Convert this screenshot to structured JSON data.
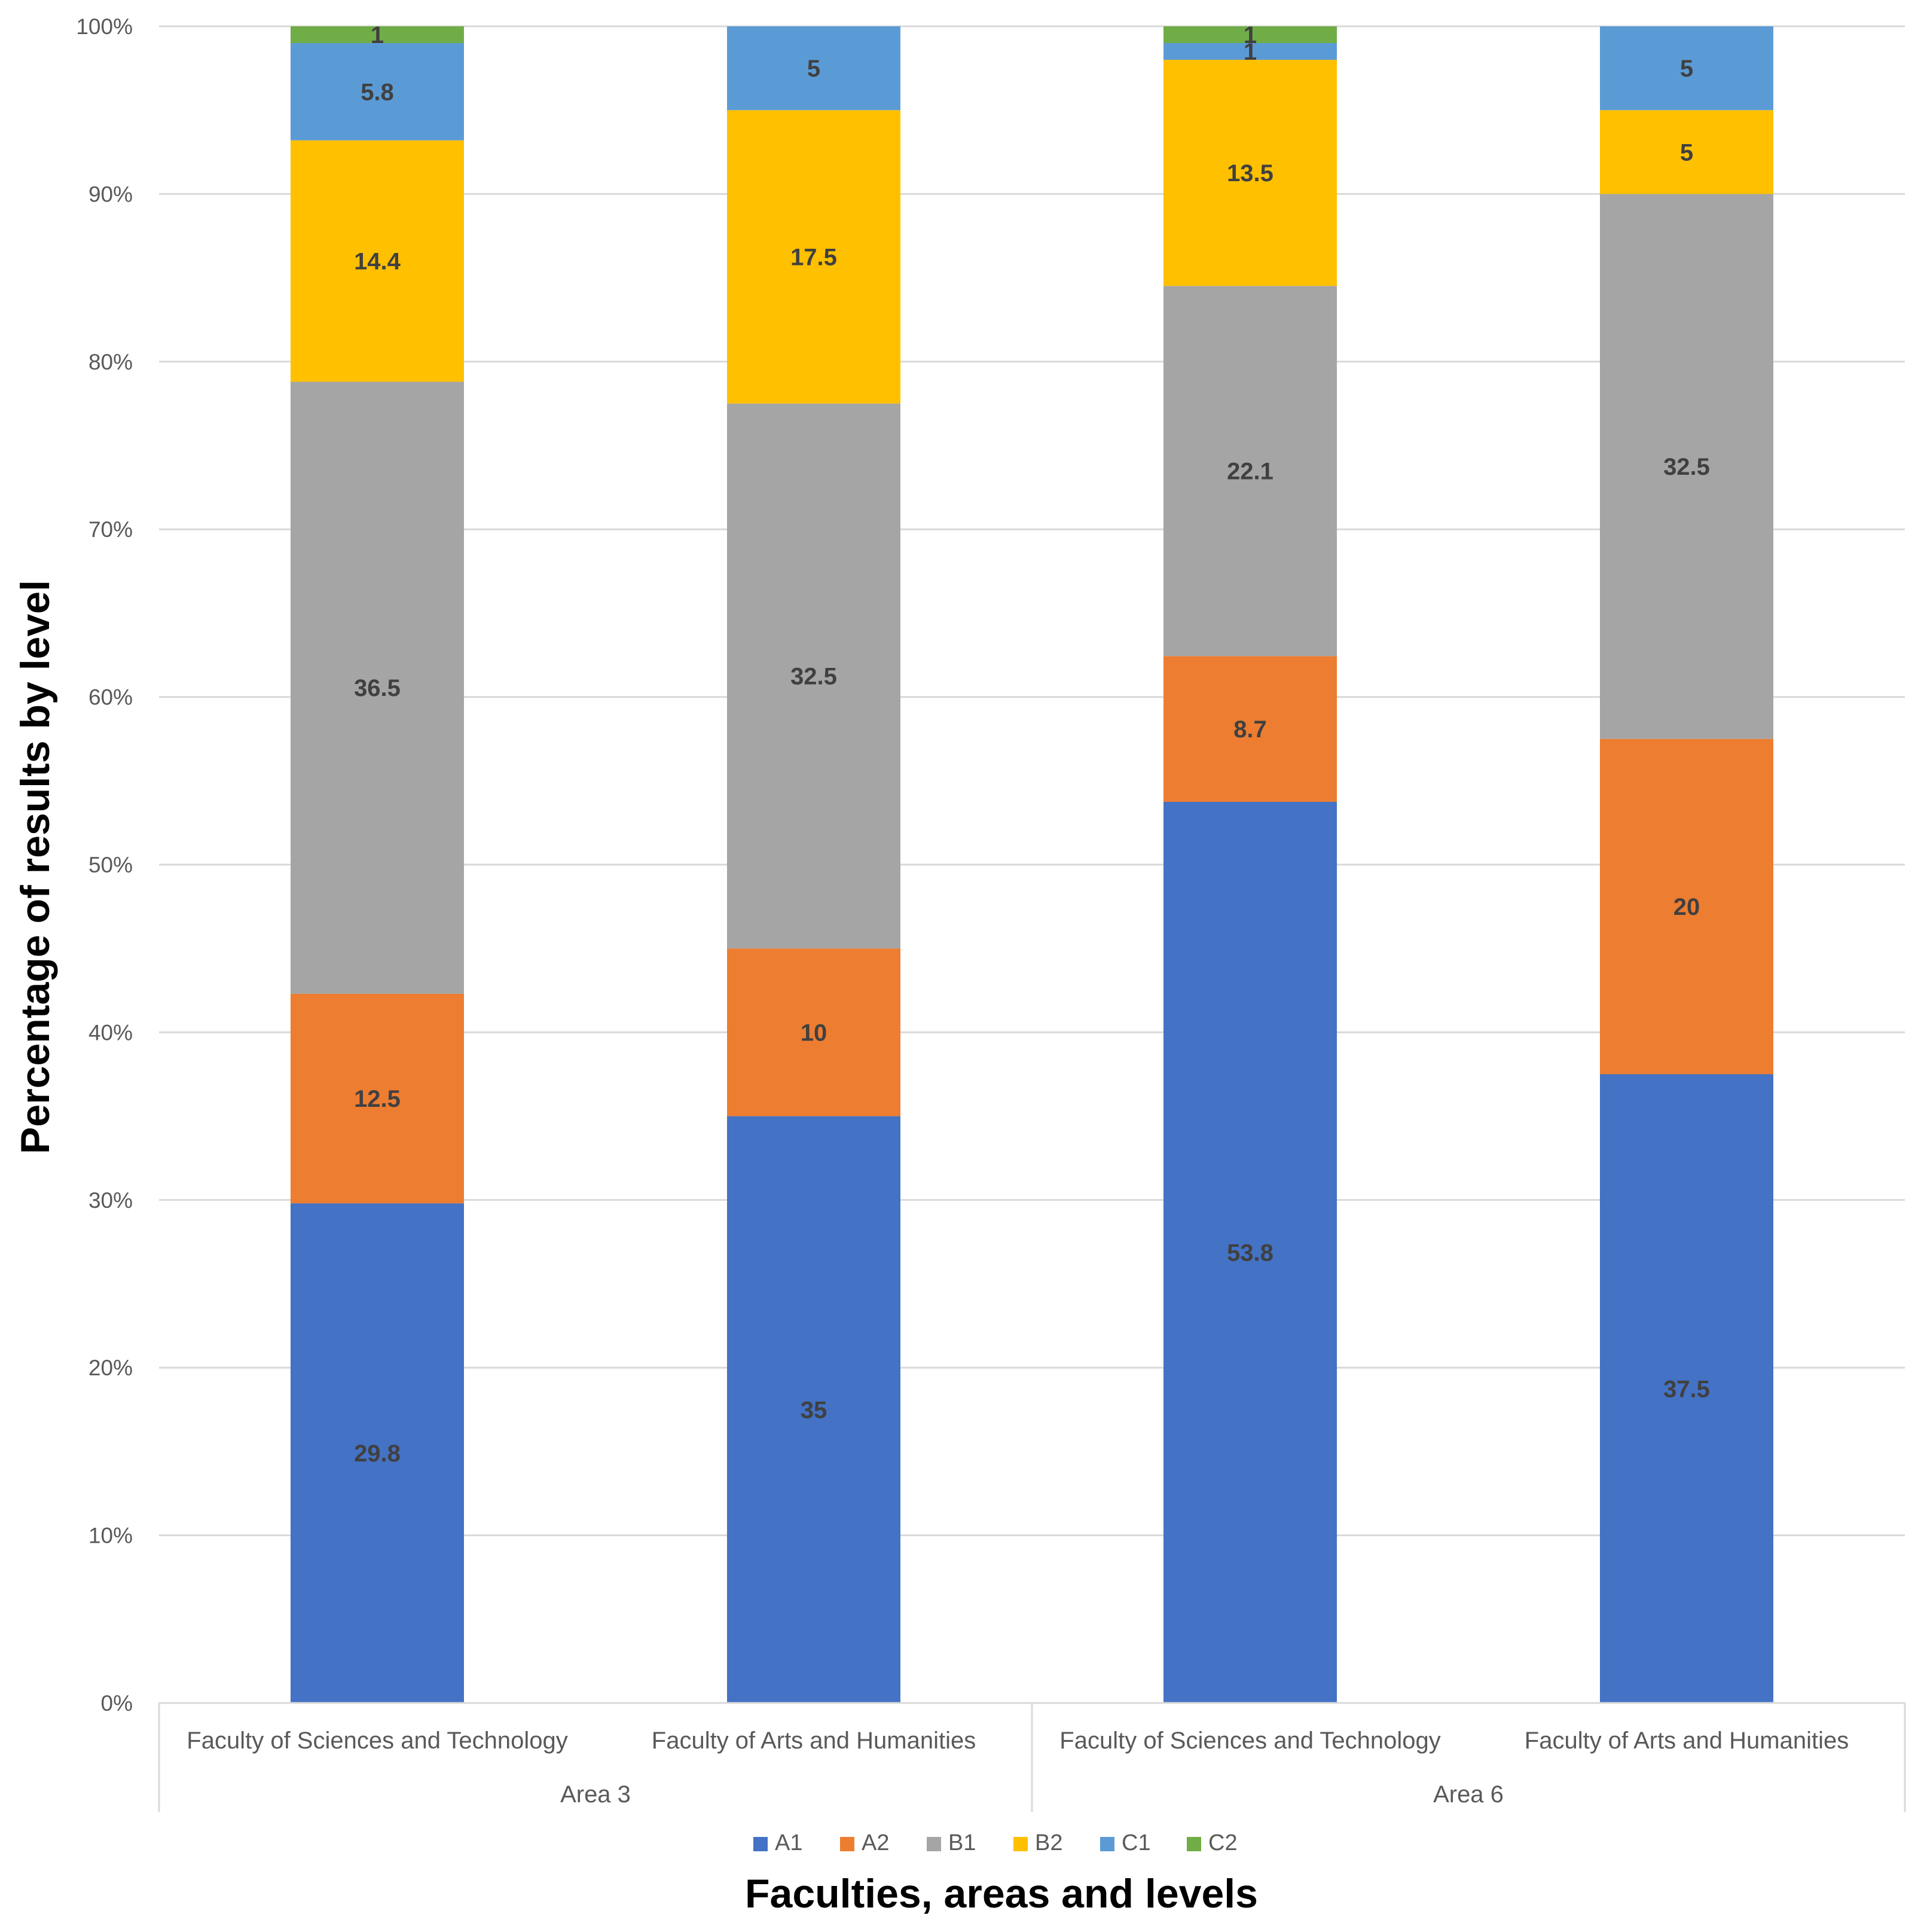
{
  "chart_data": {
    "type": "bar",
    "stacked": "percent",
    "ylabel": "Percentage of results by level",
    "xlabel": "Faculties, areas and levels",
    "ylim": [
      0,
      100
    ],
    "y_ticks": [
      "0%",
      "10%",
      "20%",
      "30%",
      "40%",
      "50%",
      "60%",
      "70%",
      "80%",
      "90%",
      "100%"
    ],
    "categories": [
      "Faculty of Sciences and Technology",
      "Faculty of Arts and Humanities",
      "Faculty of Sciences and Technology",
      "Faculty of Arts and Humanities"
    ],
    "groups": [
      {
        "label": "Area 3",
        "categories": [
          0,
          1
        ]
      },
      {
        "label": "Area 6",
        "categories": [
          2,
          3
        ]
      }
    ],
    "series": [
      {
        "name": "A1",
        "color": "#4472C4",
        "values": [
          29.8,
          35,
          53.8,
          37.5
        ],
        "labels": [
          "29.8",
          "35",
          "53.8",
          "37.5"
        ]
      },
      {
        "name": "A2",
        "color": "#ED7D31",
        "values": [
          12.5,
          10,
          8.7,
          20
        ],
        "labels": [
          "12.5",
          "10",
          "8.7",
          "20"
        ]
      },
      {
        "name": "B1",
        "color": "#A5A5A5",
        "values": [
          36.5,
          32.5,
          22.1,
          32.5
        ],
        "labels": [
          "36.5",
          "32.5",
          "22.1",
          "32.5"
        ]
      },
      {
        "name": "B2",
        "color": "#FFC000",
        "values": [
          14.4,
          17.5,
          13.5,
          5
        ],
        "labels": [
          "14.4",
          "17.5",
          "13.5",
          "5"
        ]
      },
      {
        "name": "C1",
        "color": "#5B9BD5",
        "values": [
          5.8,
          5,
          1,
          5
        ],
        "labels": [
          "5.8",
          "5",
          "1",
          "5"
        ]
      },
      {
        "name": "C2",
        "color": "#70AD47",
        "values": [
          1,
          0,
          1,
          0
        ],
        "labels": [
          "1",
          "",
          "1",
          ""
        ]
      }
    ],
    "legend": "bottom",
    "grid": true
  }
}
